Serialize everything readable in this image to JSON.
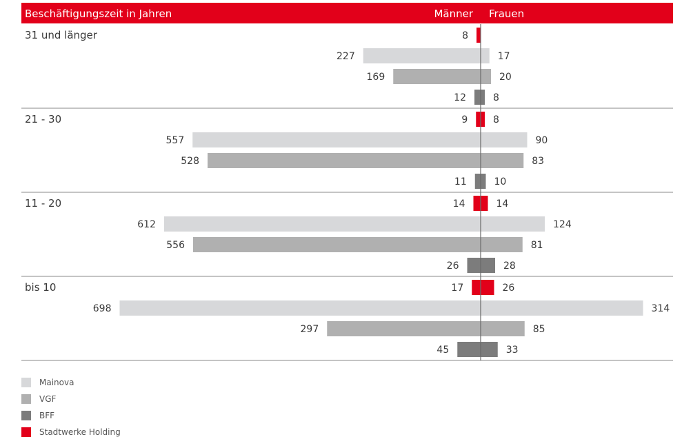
{
  "chart_data": {
    "type": "bar",
    "header": {
      "title": "Beschäftigungszeit in Jahren",
      "left_label": "Männer",
      "right_label": "Frauen"
    },
    "groups": [
      "31 und länger",
      "21 - 30",
      "11 - 20",
      "bis 10"
    ],
    "series": [
      {
        "name": "Stadtwerke Holding",
        "color": "#e2001a",
        "maenner": [
          8,
          9,
          14,
          17
        ],
        "frauen": [
          0,
          8,
          14,
          26
        ]
      },
      {
        "name": "Mainova",
        "color": "#d7d8da",
        "maenner": [
          227,
          557,
          612,
          698
        ],
        "frauen": [
          17,
          90,
          124,
          314
        ]
      },
      {
        "name": "VGF",
        "color": "#b0b0b0",
        "maenner": [
          169,
          528,
          556,
          297
        ],
        "frauen": [
          20,
          83,
          81,
          85
        ]
      },
      {
        "name": "BFF",
        "color": "#7c7c7c",
        "maenner": [
          12,
          11,
          26,
          45
        ],
        "frauen": [
          8,
          10,
          28,
          33
        ]
      }
    ],
    "legend_order": [
      "Mainova",
      "VGF",
      "BFF",
      "Stadtwerke Holding"
    ],
    "legend_position": "bottom-left",
    "header_color": "#e2001a"
  }
}
